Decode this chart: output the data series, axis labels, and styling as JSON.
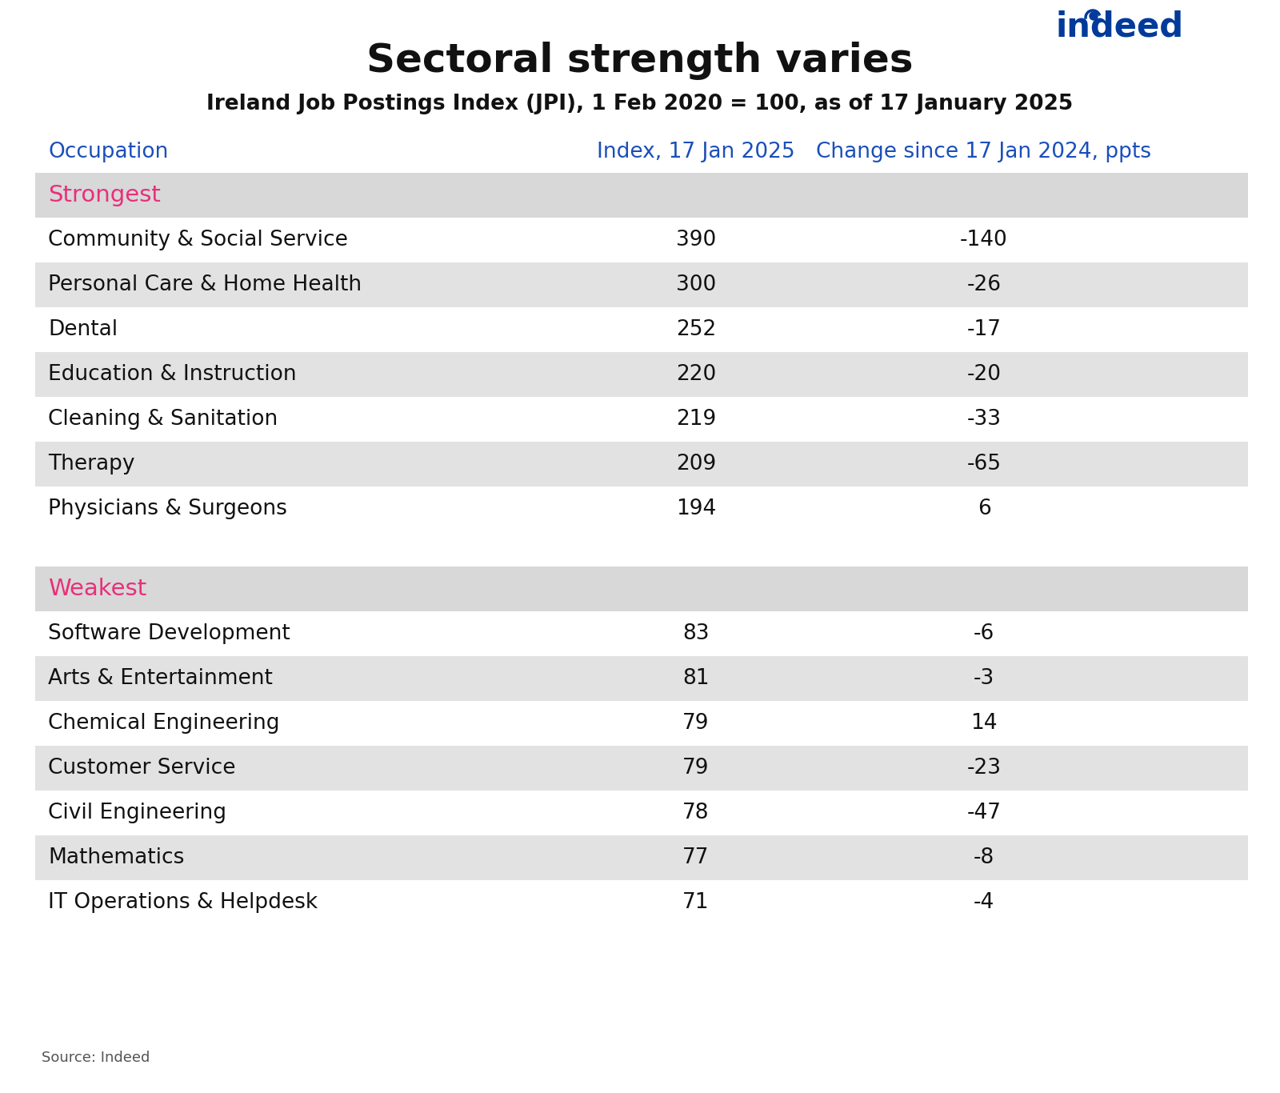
{
  "title": "Sectoral strength varies",
  "subtitle": "Ireland Job Postings Index (JPI), 1 Feb 2020 = 100, as of 17 January 2025",
  "col_headers": [
    "Occupation",
    "Index, 17 Jan 2025",
    "Change since 17 Jan 2024, ppts"
  ],
  "header_color": "#1a4fba",
  "section_strongest_label": "Strongest",
  "section_weakest_label": "Weakest",
  "section_label_color": "#e8307a",
  "strongest_rows": [
    {
      "occupation": "Community & Social Service",
      "index": "390",
      "change": "-140"
    },
    {
      "occupation": "Personal Care & Home Health",
      "index": "300",
      "change": "-26"
    },
    {
      "occupation": "Dental",
      "index": "252",
      "change": "-17"
    },
    {
      "occupation": "Education & Instruction",
      "index": "220",
      "change": "-20"
    },
    {
      "occupation": "Cleaning & Sanitation",
      "index": "219",
      "change": "-33"
    },
    {
      "occupation": "Therapy",
      "index": "209",
      "change": "-65"
    },
    {
      "occupation": "Physicians & Surgeons",
      "index": "194",
      "change": "6"
    }
  ],
  "weakest_rows": [
    {
      "occupation": "Software Development",
      "index": "83",
      "change": "-6"
    },
    {
      "occupation": "Arts & Entertainment",
      "index": "81",
      "change": "-3"
    },
    {
      "occupation": "Chemical Engineering",
      "index": "79",
      "change": "14"
    },
    {
      "occupation": "Customer Service",
      "index": "79",
      "change": "-23"
    },
    {
      "occupation": "Civil Engineering",
      "index": "78",
      "change": "-47"
    },
    {
      "occupation": "Mathematics",
      "index": "77",
      "change": "-8"
    },
    {
      "occupation": "IT Operations & Helpdesk",
      "index": "71",
      "change": "-4"
    }
  ],
  "row_bg_shaded": "#e2e2e2",
  "row_bg_white": "#ffffff",
  "section_bg": "#d8d8d8",
  "gap_bg": "#ffffff",
  "source_text": "Source: Indeed",
  "background_color": "#ffffff",
  "title_fontsize": 36,
  "subtitle_fontsize": 19,
  "header_fontsize": 19,
  "section_label_fontsize": 21,
  "row_fontsize": 19,
  "source_fontsize": 13,
  "indeed_fontsize": 30
}
